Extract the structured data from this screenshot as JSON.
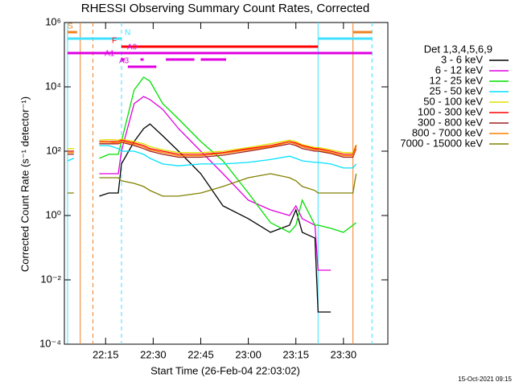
{
  "chart_data": {
    "type": "line",
    "title": "RHESSI Observing Summary Count Rates, Corrected",
    "xlabel": "Start Time (26-Feb-04 22:03:02)",
    "ylabel": "Corrected Count Rate (s⁻¹ detector⁻¹)",
    "footer": "15-Oct-2021 09:15",
    "log_y": true,
    "legend_title": "Det 1,3,4,5,6,9",
    "legend_position": "right",
    "xlim": [
      "22:02",
      "23:44"
    ],
    "xticks": [
      "22:15",
      "22:30",
      "22:45",
      "23:00",
      "23:15",
      "23:30"
    ],
    "ylim": [
      0.0001,
      1000000
    ],
    "yticks": [
      {
        "value": 0.0001,
        "label": "10⁻⁴"
      },
      {
        "value": 0.01,
        "label": "10⁻²"
      },
      {
        "value": 1,
        "label": "10⁰"
      },
      {
        "value": 100,
        "label": "10²"
      },
      {
        "value": 10000,
        "label": "10⁴"
      },
      {
        "value": 1000000,
        "label": "10⁶"
      }
    ],
    "x": [
      "22:03",
      "22:05",
      "22:09",
      "22:13",
      "22:16",
      "22:19",
      "22:20",
      "22:24",
      "22:27",
      "22:29",
      "22:33",
      "22:38",
      "22:45",
      "22:52",
      "23:00",
      "23:07",
      "23:13",
      "23:15",
      "23:17",
      "23:21",
      "23:22",
      "23:26",
      "23:30",
      "23:33",
      "23:34"
    ],
    "series": [
      {
        "name": "3 - 6 keV",
        "color": "#000000",
        "values": [
          null,
          null,
          null,
          4,
          5,
          5,
          40,
          200,
          500,
          700,
          300,
          100,
          20,
          2,
          0.8,
          0.3,
          0.5,
          1.5,
          0.3,
          0.2,
          0.001,
          0.001,
          null,
          null,
          null
        ]
      },
      {
        "name": "6 - 12 keV",
        "color": "#e000e0",
        "values": [
          null,
          null,
          null,
          20,
          20,
          20,
          100,
          3000,
          5000,
          4000,
          2000,
          500,
          100,
          20,
          3,
          1.5,
          1,
          2,
          0.8,
          0.5,
          0.02,
          0.02,
          null,
          null,
          null
        ]
      },
      {
        "name": "12 - 25 keV",
        "color": "#00e000",
        "values": [
          100,
          100,
          null,
          60,
          80,
          80,
          200,
          8000,
          20000,
          15000,
          3000,
          1000,
          200,
          50,
          5,
          0.6,
          0.3,
          0.5,
          3,
          0.5,
          0.5,
          0.4,
          0.3,
          0.5,
          0.6
        ]
      },
      {
        "name": "25 - 50 keV",
        "color": "#00e0ff",
        "values": [
          50,
          60,
          null,
          150,
          150,
          120,
          100,
          100,
          80,
          60,
          40,
          35,
          40,
          40,
          45,
          55,
          70,
          60,
          50,
          45,
          45,
          40,
          30,
          30,
          40
        ]
      },
      {
        "name": "50 - 100 keV",
        "color": "#e0e000",
        "values": [
          120,
          120,
          null,
          220,
          230,
          220,
          240,
          200,
          170,
          140,
          110,
          90,
          90,
          100,
          130,
          170,
          220,
          200,
          160,
          130,
          130,
          110,
          90,
          90,
          160
        ]
      },
      {
        "name": "100 - 300 keV",
        "color": "#ff0000",
        "values": [
          100,
          100,
          null,
          200,
          200,
          200,
          220,
          180,
          150,
          120,
          100,
          80,
          80,
          90,
          120,
          150,
          200,
          180,
          150,
          120,
          120,
          100,
          80,
          80,
          150
        ]
      },
      {
        "name": "300 - 800 keV",
        "color": "#a02020",
        "values": [
          80,
          80,
          null,
          170,
          170,
          170,
          190,
          150,
          120,
          100,
          80,
          65,
          65,
          75,
          100,
          130,
          170,
          150,
          120,
          100,
          100,
          85,
          65,
          65,
          120
        ]
      },
      {
        "name": "800 - 7000 keV",
        "color": "#ff8000",
        "values": [
          90,
          90,
          null,
          190,
          190,
          180,
          200,
          165,
          135,
          110,
          90,
          72,
          72,
          85,
          110,
          140,
          190,
          165,
          135,
          110,
          110,
          90,
          72,
          72,
          140
        ]
      },
      {
        "name": "7000 - 15000 keV",
        "color": "#808000",
        "values": [
          5,
          5,
          null,
          15,
          15,
          15,
          12,
          10,
          8,
          6,
          4,
          4,
          5,
          8,
          15,
          20,
          15,
          12,
          8,
          6,
          5,
          5,
          5,
          5,
          20
        ]
      }
    ],
    "vlines": [
      {
        "x": "22:03",
        "color": "#40e0ff",
        "dashed": false
      },
      {
        "x": "22:07",
        "color": "#f08020",
        "dashed": false
      },
      {
        "x": "22:11",
        "color": "#f08020",
        "dashed": true
      },
      {
        "x": "22:20",
        "color": "#40e0ff",
        "dashed": true
      },
      {
        "x": "23:22",
        "color": "#40e0ff",
        "dashed": false
      },
      {
        "x": "23:33",
        "color": "#f08020",
        "dashed": false
      },
      {
        "x": "23:39",
        "color": "#40e0ff",
        "dashed": true
      }
    ],
    "flags": [
      {
        "label": "S",
        "color": "#f08020",
        "spans": [
          [
            "22:03",
            "22:06"
          ],
          [
            "23:33",
            "23:39"
          ]
        ]
      },
      {
        "label": "N",
        "color": "#40e0ff",
        "spans": [
          [
            "22:03",
            "22:20"
          ],
          [
            "23:22",
            "23:39"
          ]
        ]
      },
      {
        "label": "F",
        "color": "#ff0000",
        "spans": [
          [
            "22:20",
            "23:22"
          ]
        ]
      },
      {
        "label": "A0",
        "color": "#e000e0",
        "spans": [
          [
            "22:03",
            "23:39"
          ]
        ]
      },
      {
        "label": "A1",
        "color": "#e000e0",
        "spans": [
          [
            "22:20",
            "22:21"
          ],
          [
            "22:26",
            "22:27"
          ],
          [
            "22:34",
            "22:43"
          ],
          [
            "22:45",
            "22:53"
          ]
        ]
      },
      {
        "label": "A3",
        "color": "#e000e0",
        "spans": [
          [
            "22:22",
            "22:31"
          ]
        ]
      }
    ]
  }
}
